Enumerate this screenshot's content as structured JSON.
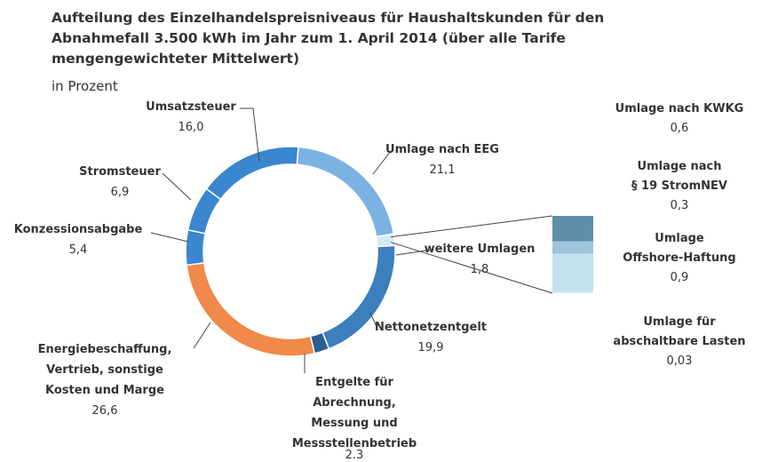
{
  "chart_data": {
    "type": "donut",
    "title": "Aufteilung des Einzelhandelspreisniveaus für Haushaltskunden für den\nAbnahmefall 3.500 kWh im Jahr zum 1. April 2014 (über alle Tarife\nmengengewichteter Mittelwert)",
    "subtitle": "in Prozent",
    "categories": [
      "Umlage nach EEG",
      "weitere Umlagen",
      "Nettonetzentgelt",
      "Entgelte für\nAbrechnung,\nMessung und\nMessstellenbetrieb",
      "Energiebeschaffung,\nVertrieb, sonstige\nKosten und Marge",
      "Konzessionsabgabe",
      "Stromsteuer",
      "Umsatzsteuer"
    ],
    "values": [
      21.1,
      1.8,
      19.9,
      2.3,
      26.6,
      5.4,
      6.9,
      16.0
    ],
    "value_labels": [
      "21,1",
      "1,8",
      "19,9",
      "2.3",
      "26,6",
      "5,4",
      "6,9",
      "16,0"
    ],
    "colors": [
      "#7cb2e2",
      "#d4e8f6",
      "#3b7fbd",
      "#2c5f91",
      "#f0894a",
      "#3a86cf",
      "#3a86cf",
      "#3a86cf"
    ],
    "breakdown": {
      "categories": [
        "Umlage nach KWKG",
        "Umlage nach\n§ 19 StromNEV",
        "Umlage\nOffshore-Haftung",
        "Umlage für\nabschaltbare Lasten"
      ],
      "values": [
        0.6,
        0.3,
        0.9,
        0.03
      ],
      "value_labels": [
        "0,6",
        "0,3",
        "0,9",
        "0,03"
      ],
      "colors": [
        "#5f8fa8",
        "#9fc4dc",
        "#c3e0f1",
        "#d9ecf7"
      ]
    }
  }
}
